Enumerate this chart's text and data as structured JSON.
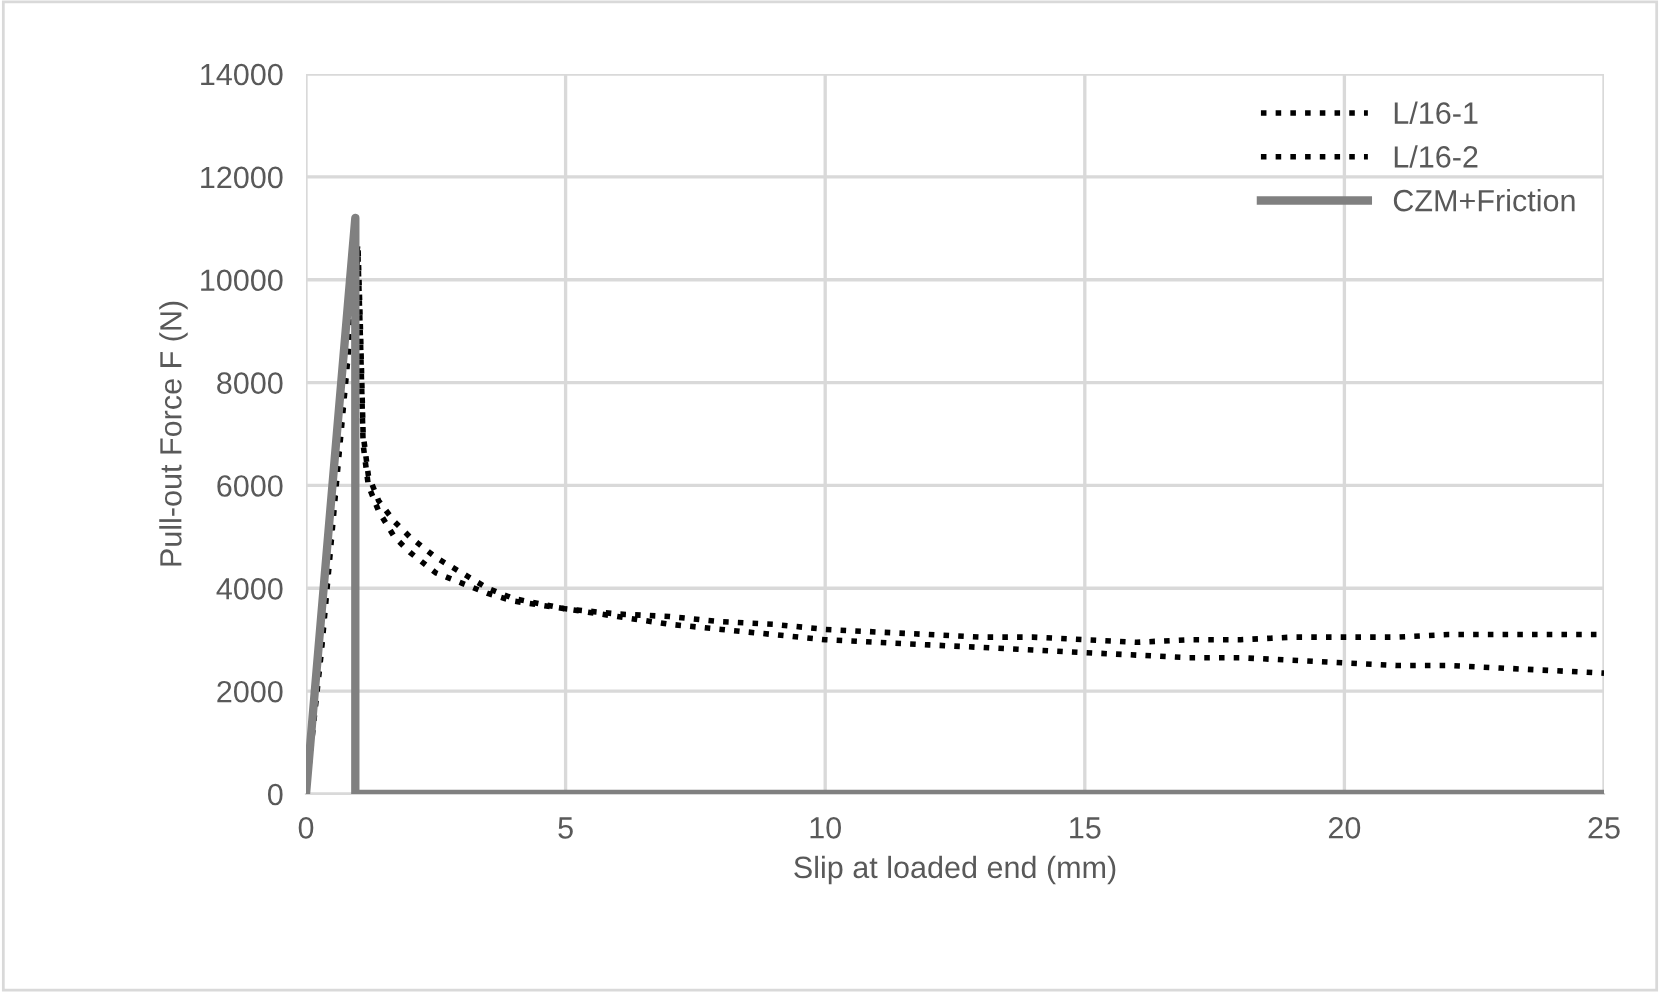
{
  "chart_data": {
    "type": "line",
    "xlabel": "Slip at loaded end (mm)",
    "ylabel": "Pull-out Force F (N)",
    "xlim": [
      0,
      25
    ],
    "ylim": [
      0,
      14000
    ],
    "xticks": [
      0,
      5,
      10,
      15,
      20,
      25
    ],
    "yticks": [
      0,
      2000,
      4000,
      6000,
      8000,
      10000,
      12000,
      14000
    ],
    "grid": true,
    "legend": "top right",
    "series": [
      {
        "name": "L/16-1",
        "color": "#000000",
        "line_style": "dotted",
        "x": [
          0,
          0.3,
          0.6,
          0.9,
          1.0,
          1.05,
          1.1,
          1.2,
          1.4,
          1.7,
          2.0,
          2.5,
          3.0,
          3.5,
          4.0,
          5.0,
          6.0,
          7.0,
          8.0,
          9.0,
          10,
          11,
          12,
          13,
          14,
          15,
          16,
          17,
          18,
          19,
          20,
          21,
          22,
          23,
          24,
          25
        ],
        "values": [
          0,
          3000,
          6500,
          9800,
          10700,
          9000,
          7000,
          6200,
          5700,
          5300,
          5000,
          4600,
          4300,
          4000,
          3800,
          3600,
          3500,
          3450,
          3350,
          3300,
          3200,
          3150,
          3100,
          3050,
          3050,
          3000,
          2950,
          3000,
          3000,
          3050,
          3050,
          3050,
          3100,
          3100,
          3100,
          3100
        ]
      },
      {
        "name": "L/16-2",
        "color": "#000000",
        "line_style": "dotted",
        "x": [
          0,
          0.3,
          0.6,
          0.9,
          1.0,
          1.05,
          1.1,
          1.2,
          1.4,
          1.7,
          2.0,
          2.5,
          3.0,
          3.5,
          4.0,
          5.0,
          6.0,
          7.0,
          8.0,
          9.0,
          10,
          11,
          12,
          13,
          14,
          15,
          16,
          17,
          18,
          19,
          20,
          21,
          22,
          23,
          24,
          25
        ],
        "values": [
          0,
          2800,
          6200,
          9500,
          10500,
          8800,
          6800,
          6000,
          5500,
          5000,
          4700,
          4300,
          4100,
          3900,
          3750,
          3600,
          3450,
          3300,
          3200,
          3100,
          3000,
          2950,
          2900,
          2850,
          2800,
          2750,
          2700,
          2650,
          2650,
          2600,
          2550,
          2500,
          2500,
          2450,
          2400,
          2350
        ]
      },
      {
        "name": "CZM+Friction",
        "color": "#808080",
        "line_style": "solid",
        "x": [
          0,
          0.95,
          0.95,
          25
        ],
        "values": [
          0,
          11200,
          0,
          0
        ]
      }
    ]
  }
}
